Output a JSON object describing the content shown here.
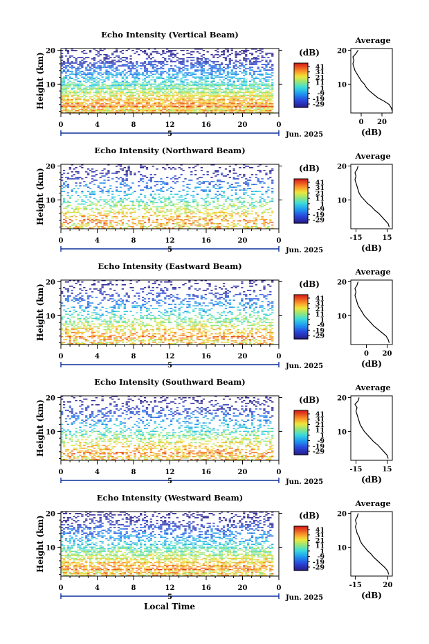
{
  "figure": {
    "xlabel": "Local Time",
    "date_label": "Jun. 2025",
    "day_label": "5",
    "colorbar_unit": "(dB)",
    "colorbar_ticks": [
      "41",
      "31",
      "21",
      "11",
      "1",
      "-9",
      "-19",
      "-29"
    ],
    "average_title": "Average",
    "average_xlabel": "(dB)",
    "ylabel": "Height (km)",
    "colors": {
      "low": "#3b2a9e",
      "mid": "#33cccc",
      "high": "#d9241a"
    }
  },
  "chart_data": [
    {
      "type": "heatmap",
      "title": "Echo Intensity (Vertical Beam)",
      "ylabel": "Height (km)",
      "x": [
        0,
        4,
        8,
        12,
        16,
        20,
        0
      ],
      "x_ticks": [
        "0",
        "4",
        "8",
        "12",
        "16",
        "20",
        "0"
      ],
      "y_ticks": [
        "20",
        "10"
      ],
      "ylim": [
        1.5,
        20.5
      ],
      "colorbar_range": [
        -29,
        41
      ],
      "profile": {
        "title": "Average",
        "xlabel": "(dB)",
        "x_ticks": [
          "0",
          "20"
        ],
        "xlim": [
          -10,
          30
        ],
        "heights": [
          2,
          3,
          4,
          5,
          6,
          7,
          8,
          9,
          10,
          11,
          12,
          13,
          14,
          15,
          16,
          17,
          18,
          19,
          20
        ],
        "values": [
          30,
          29,
          27,
          22,
          16,
          12,
          8,
          5,
          3,
          0,
          -2,
          -4,
          -6,
          -7,
          -8,
          -7,
          -8,
          -5,
          -3
        ]
      }
    },
    {
      "type": "heatmap",
      "title": "Echo Intensity (Northward Beam)",
      "ylabel": "Height (km)",
      "x": [
        0,
        4,
        8,
        12,
        16,
        20,
        0
      ],
      "x_ticks": [
        "0",
        "4",
        "8",
        "12",
        "16",
        "20",
        "0"
      ],
      "y_ticks": [
        "20",
        "10"
      ],
      "ylim": [
        1.5,
        20.5
      ],
      "colorbar_range": [
        -29,
        41
      ],
      "profile": {
        "title": "Average",
        "xlabel": "(dB)",
        "x_ticks": [
          "-15",
          "15"
        ],
        "xlim": [
          -20,
          20
        ],
        "heights": [
          2,
          3,
          4,
          5,
          6,
          7,
          8,
          9,
          10,
          11,
          12,
          13,
          14,
          15,
          16,
          17,
          18,
          19,
          20
        ],
        "values": [
          17,
          16,
          13,
          10,
          7,
          3,
          0,
          -4,
          -7,
          -10,
          -12,
          -13,
          -14,
          -15,
          -16,
          -15,
          -16,
          -14,
          -13
        ]
      }
    },
    {
      "type": "heatmap",
      "title": "Echo Intensity (Eastward Beam)",
      "ylabel": "Height (km)",
      "x": [
        0,
        4,
        8,
        12,
        16,
        20,
        0
      ],
      "x_ticks": [
        "0",
        "4",
        "8",
        "12",
        "16",
        "20",
        "0"
      ],
      "y_ticks": [
        "20",
        "10"
      ],
      "ylim": [
        1.5,
        20.5
      ],
      "colorbar_range": [
        -29,
        41
      ],
      "profile": {
        "title": "Average",
        "xlabel": "(dB)",
        "x_ticks": [
          "0",
          "20"
        ],
        "xlim": [
          -15,
          25
        ],
        "heights": [
          2,
          3,
          4,
          5,
          6,
          7,
          8,
          9,
          10,
          11,
          12,
          13,
          14,
          15,
          16,
          17,
          18,
          19,
          20
        ],
        "values": [
          22,
          21,
          19,
          15,
          11,
          7,
          4,
          1,
          -2,
          -4,
          -6,
          -8,
          -9,
          -10,
          -11,
          -10,
          -11,
          -9,
          -8
        ]
      }
    },
    {
      "type": "heatmap",
      "title": "Echo Intensity (Southward Beam)",
      "ylabel": "Height (km)",
      "x": [
        0,
        4,
        8,
        12,
        16,
        20,
        0
      ],
      "x_ticks": [
        "0",
        "4",
        "8",
        "12",
        "16",
        "20",
        "0"
      ],
      "y_ticks": [
        "20",
        "10"
      ],
      "ylim": [
        1.5,
        20.5
      ],
      "colorbar_range": [
        -29,
        41
      ],
      "profile": {
        "title": "Average",
        "xlabel": "(dB)",
        "x_ticks": [
          "-15",
          "15"
        ],
        "xlim": [
          -20,
          20
        ],
        "heights": [
          2,
          3,
          4,
          5,
          6,
          7,
          8,
          9,
          10,
          11,
          12,
          13,
          14,
          15,
          16,
          17,
          18,
          19,
          20
        ],
        "values": [
          16,
          15,
          12,
          9,
          6,
          2,
          -1,
          -4,
          -7,
          -9,
          -11,
          -12,
          -13,
          -14,
          -15,
          -14,
          -16,
          -13,
          -12
        ]
      }
    },
    {
      "type": "heatmap",
      "title": "Echo Intensity (Westward Beam)",
      "ylabel": "Height (km)",
      "x": [
        0,
        4,
        8,
        12,
        16,
        20,
        0
      ],
      "x_ticks": [
        "0",
        "4",
        "8",
        "12",
        "16",
        "20",
        "0"
      ],
      "y_ticks": [
        "20",
        "10"
      ],
      "ylim": [
        1.5,
        20.5
      ],
      "colorbar_range": [
        -29,
        41
      ],
      "profile": {
        "title": "Average",
        "xlabel": "(dB)",
        "x_ticks": [
          "-15",
          "20"
        ],
        "xlim": [
          -20,
          25
        ],
        "heights": [
          2,
          3,
          4,
          5,
          6,
          7,
          8,
          9,
          10,
          11,
          12,
          13,
          14,
          15,
          16,
          17,
          18,
          19,
          20
        ],
        "values": [
          21,
          20,
          17,
          13,
          9,
          5,
          2,
          -2,
          -5,
          -8,
          -10,
          -11,
          -13,
          -14,
          -15,
          -14,
          -15,
          -13,
          -12
        ]
      }
    }
  ]
}
